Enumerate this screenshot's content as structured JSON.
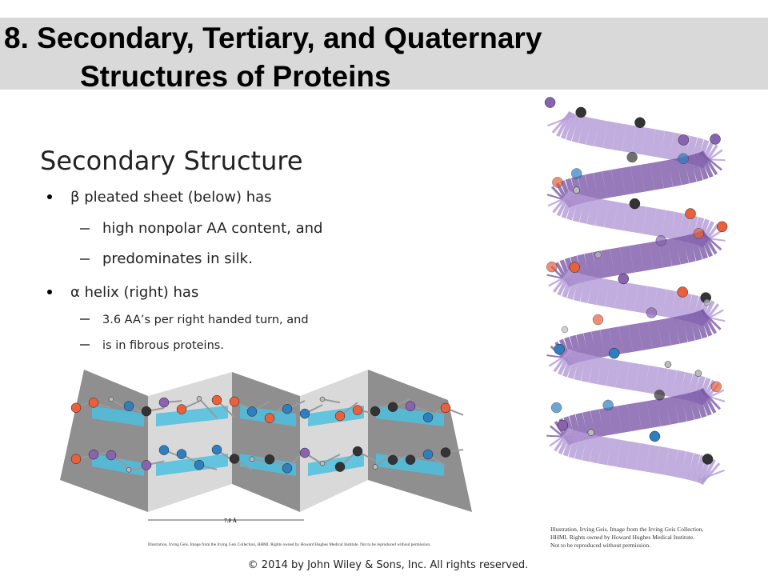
{
  "header": {
    "title_line1": "8. Secondary, Tertiary, and Quaternary",
    "title_line2": "Structures of Proteins"
  },
  "content": {
    "heading": "Secondary Structure",
    "bullets": [
      {
        "text": "β pleated sheet (below) has",
        "subs": [
          "high nonpolar AA content, and",
          "predominates in silk."
        ]
      },
      {
        "text": "α helix (right) has",
        "subs": [
          "3.6 AA’s per right handed turn, and",
          "is in fibrous proteins."
        ]
      }
    ]
  },
  "figures": {
    "sheet": {
      "measure": "7.0 Å",
      "credit": "Illustration, Irving Geis. Image from the Irving Geis Collection, HHMI. Rights owned by Howard Hughes Medical Institute. Not to be reproduced without permission."
    },
    "helix": {
      "credit_lines": [
        "Illustration, Irving Geis. Image from the Irving Geis Collection,",
        "HHMI. Rights owned by Howard Hughes Medical Institute.",
        "Not to be reproduced without permission."
      ]
    }
  },
  "footer": {
    "copyright": "© 2014 by John Wiley & Sons, Inc. All rights reserved."
  }
}
